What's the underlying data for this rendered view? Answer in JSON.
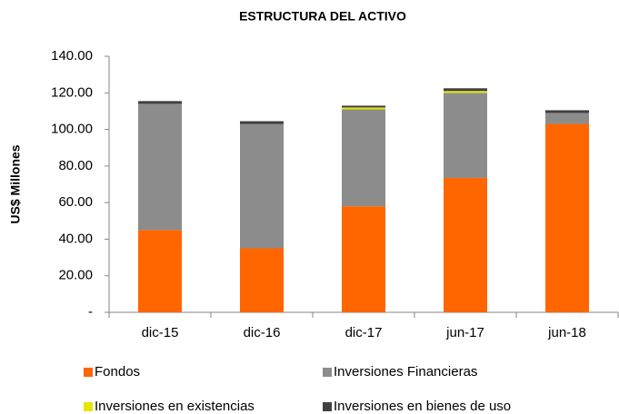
{
  "chart_data": {
    "type": "stacked-bar",
    "title": "ESTRUCTURA DEL ACTIVO",
    "y_label": "US$ Millones",
    "categories": [
      "dic-15",
      "dic-16",
      "dic-17",
      "jun-17",
      "jun-18"
    ],
    "series": [
      {
        "name": "Fondos",
        "color": "#ff6600",
        "values": [
          45,
          35,
          58,
          73.5,
          103
        ]
      },
      {
        "name": "Inversiones Financieras",
        "color": "#8c8c8c",
        "values": [
          69,
          68,
          53,
          46.5,
          6
        ]
      },
      {
        "name": "Inversiones en existencias",
        "color": "#e6e600",
        "values": [
          0,
          0,
          1,
          1,
          0
        ]
      },
      {
        "name": "Inversiones en bienes de uso",
        "color": "#404040",
        "values": [
          1.5,
          1.5,
          1,
          1.5,
          1.5
        ]
      }
    ],
    "ylim": [
      0,
      140
    ],
    "yticks": [
      {
        "value": 0,
        "label": "-"
      },
      {
        "value": 20,
        "label": "20.00"
      },
      {
        "value": 40,
        "label": "40.00"
      },
      {
        "value": 60,
        "label": "60.00"
      },
      {
        "value": 80,
        "label": "80.00"
      },
      {
        "value": 100,
        "label": "100.00"
      },
      {
        "value": 120,
        "label": "120.00"
      },
      {
        "value": 140,
        "label": "140.00"
      }
    ],
    "grid": false
  }
}
